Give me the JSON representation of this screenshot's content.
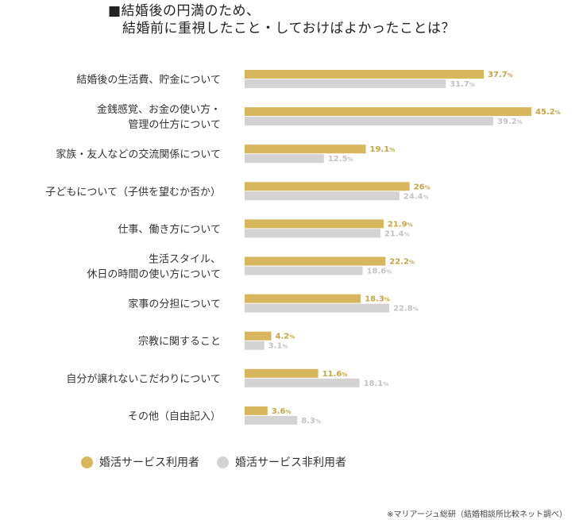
{
  "title_line1": "■結婚後の円満のため、",
  "title_line2": "結婚前に重視したこと・しておけばよかったことは？",
  "source": "※マリアージュ総研（結婚相談所比較ネット調べ）",
  "colors": {
    "series1": "#D8B65E",
    "series2": "#D4D2D2"
  },
  "chart_data": {
    "type": "bar",
    "orientation": "horizontal",
    "unit": "%",
    "xlim": [
      0,
      50
    ],
    "legend_position": "bottom-left",
    "categories": [
      [
        "結婚後の生活費、貯金について"
      ],
      [
        "金銭感覚、お金の使い方・",
        "管理の仕方について"
      ],
      [
        "家族・友人などの交流関係について"
      ],
      [
        "子どもについて（子供を望むか否か）"
      ],
      [
        "仕事、働き方について"
      ],
      [
        "生活スタイル、",
        "休日の時間の使い方について"
      ],
      [
        "家事の分担について"
      ],
      [
        "宗教に関すること"
      ],
      [
        "自分が譲れないこだわりについて"
      ],
      [
        "その他（自由記入）"
      ]
    ],
    "series": [
      {
        "name": "婚活サービス利用者",
        "values": [
          37.7,
          45.2,
          19.1,
          26,
          21.9,
          22.2,
          18.3,
          4.2,
          11.6,
          3.6
        ],
        "labels": [
          "37.7",
          "45.2",
          "19.1",
          "26",
          "21.9",
          "22.2",
          "18.3",
          "4.2",
          "11.6",
          "3.6"
        ]
      },
      {
        "name": "婚活サービス非利用者",
        "values": [
          31.7,
          39.2,
          12.5,
          24.4,
          21.4,
          18.6,
          22.8,
          3.1,
          18.1,
          8.3
        ],
        "labels": [
          "31.7",
          "39.2",
          "12.5",
          "24.4",
          "21.4",
          "18.6",
          "22.8",
          "3.1",
          "18.1",
          "8.3"
        ]
      }
    ]
  }
}
